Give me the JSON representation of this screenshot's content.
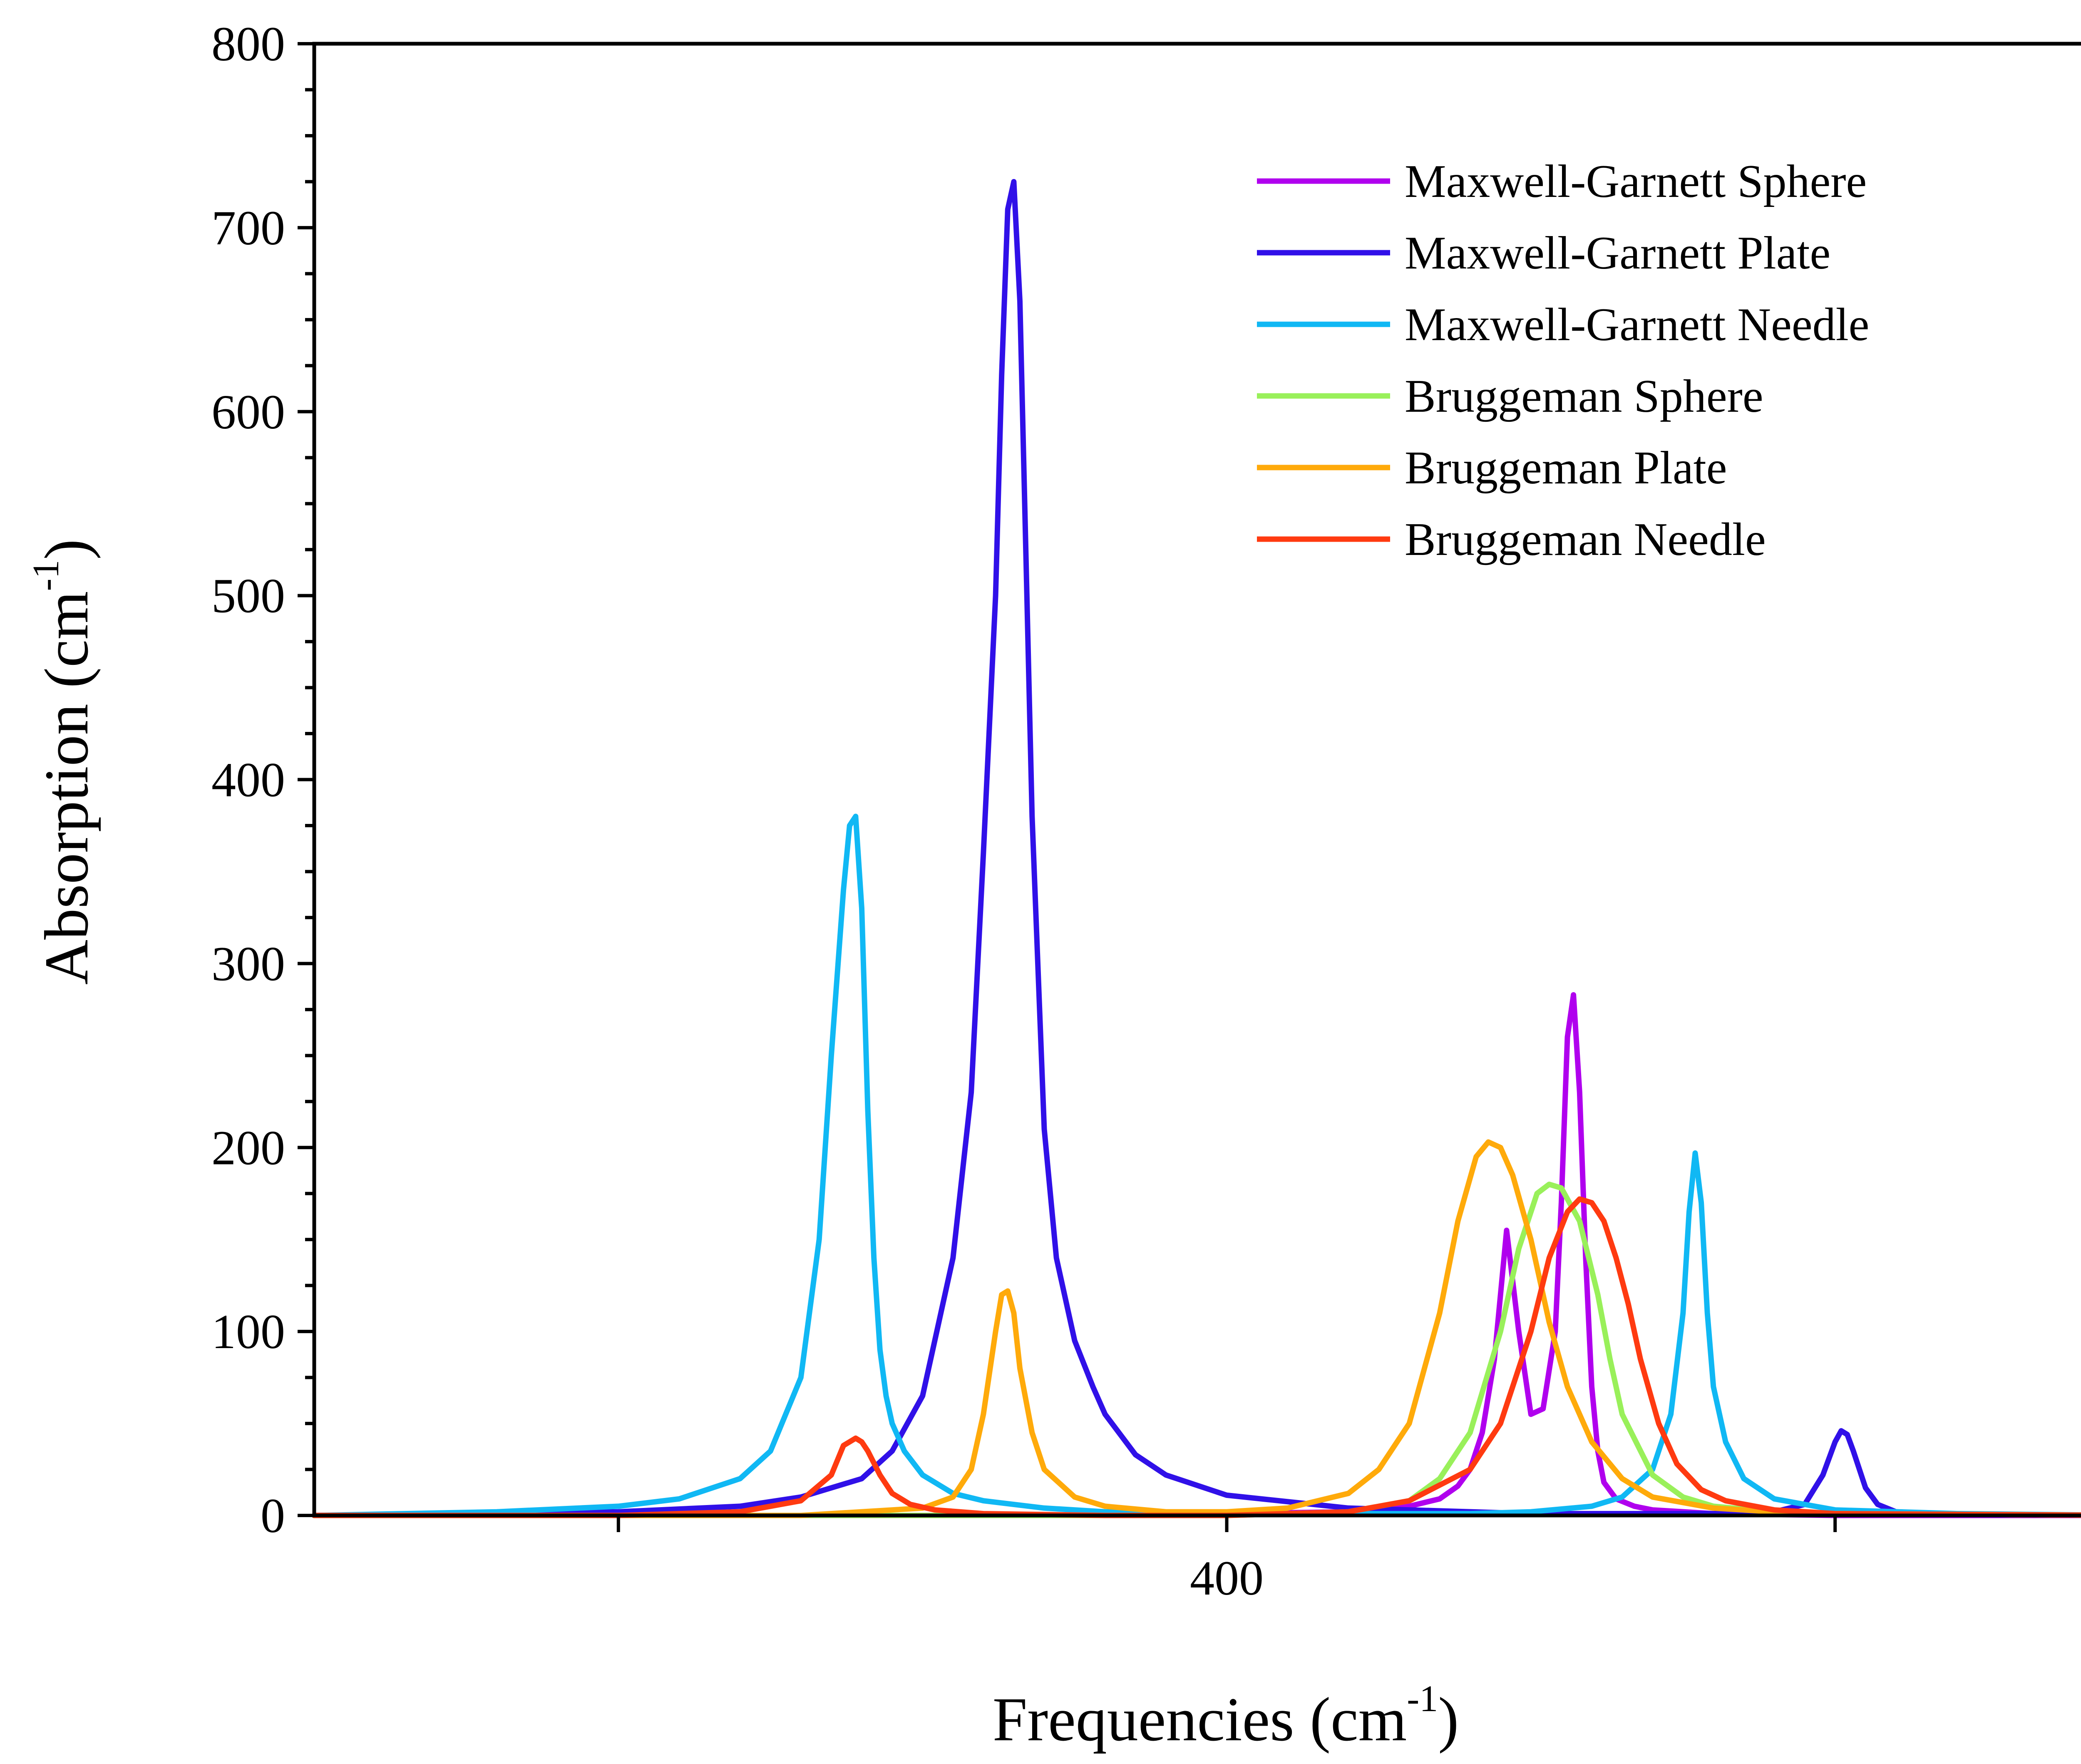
{
  "chart_data": {
    "type": "line",
    "title": "",
    "xlabel": "Frequencies (cm",
    "xlabel_sup": "-1",
    "xlabel_close": ")",
    "ylabel": "Absorption (cm",
    "ylabel_sup": "-1",
    "ylabel_close": ")",
    "xlim": [
      250,
      550
    ],
    "ylim": [
      0,
      800
    ],
    "x_major_ticks": [
      300,
      400,
      500
    ],
    "x_tick_labels": [
      "",
      "400",
      ""
    ],
    "y_major_ticks": [
      0,
      100,
      200,
      300,
      400,
      500,
      600,
      700,
      800
    ],
    "y_tick_labels": [
      "0",
      "100",
      "200",
      "300",
      "400",
      "500",
      "600",
      "700",
      "800"
    ],
    "y_minor_step": 25,
    "grid": false,
    "legend_position": "top-right",
    "series": [
      {
        "name": "Maxwell-Garnett Sphere",
        "color": "#b000ee",
        "x": [
          250,
          320,
          340,
          360,
          380,
          400,
          420,
          430,
          435,
          438,
          440,
          442,
          444,
          446,
          448,
          450,
          452,
          454,
          455,
          456,
          457,
          458,
          459,
          460,
          461,
          462,
          464,
          467,
          470,
          480,
          490,
          500,
          520,
          550
        ],
        "y": [
          0,
          0,
          0,
          0,
          0,
          1,
          2,
          5,
          9,
          16,
          25,
          45,
          85,
          155,
          100,
          55,
          58,
          100,
          170,
          260,
          283,
          230,
          140,
          70,
          35,
          18,
          9,
          5,
          3,
          1,
          0.5,
          0,
          0,
          0
        ]
      },
      {
        "name": "Maxwell-Garnett Plate",
        "color": "#3010e8",
        "x": [
          250,
          300,
          320,
          330,
          340,
          345,
          350,
          355,
          358,
          360,
          362,
          363,
          364,
          365,
          366,
          367,
          368,
          370,
          372,
          375,
          378,
          380,
          385,
          390,
          400,
          420,
          450,
          480,
          490,
          495,
          498,
          500,
          501,
          502,
          503,
          505,
          507,
          510,
          520,
          550
        ],
        "y": [
          0,
          2,
          5,
          10,
          20,
          35,
          65,
          140,
          230,
          360,
          500,
          620,
          710,
          725,
          660,
          520,
          380,
          210,
          140,
          95,
          70,
          55,
          33,
          22,
          11,
          4,
          1,
          1,
          2,
          6,
          22,
          40,
          46,
          44,
          35,
          15,
          6,
          2,
          0.5,
          0
        ]
      },
      {
        "name": "Maxwell-Garnett Needle",
        "color": "#10b8f4",
        "x": [
          250,
          280,
          300,
          310,
          320,
          325,
          330,
          333,
          335,
          337,
          338,
          339,
          340,
          341,
          342,
          343,
          344,
          345,
          347,
          350,
          355,
          360,
          370,
          380,
          400,
          420,
          440,
          450,
          460,
          465,
          470,
          473,
          475,
          476,
          477,
          478,
          479,
          480,
          482,
          485,
          490,
          500,
          520,
          550
        ],
        "y": [
          0,
          2,
          5,
          9,
          20,
          35,
          75,
          150,
          250,
          340,
          375,
          380,
          330,
          220,
          140,
          90,
          65,
          50,
          35,
          22,
          12,
          8,
          4,
          2,
          1,
          1,
          1,
          2,
          5,
          10,
          25,
          55,
          110,
          165,
          197,
          170,
          110,
          70,
          40,
          20,
          9,
          3,
          1,
          0
        ]
      },
      {
        "name": "Bruggeman Sphere",
        "color": "#99f05a",
        "x": [
          250,
          400,
          420,
          430,
          435,
          440,
          445,
          448,
          451,
          453,
          455,
          458,
          461,
          463,
          465,
          470,
          475,
          480,
          490,
          500,
          550
        ],
        "y": [
          0,
          0,
          2,
          8,
          20,
          45,
          100,
          145,
          175,
          180,
          178,
          160,
          120,
          85,
          55,
          22,
          10,
          5,
          2,
          1,
          0
        ]
      },
      {
        "name": "Bruggeman Plate",
        "color": "#ffaa0a",
        "x": [
          250,
          330,
          350,
          355,
          358,
          360,
          362,
          363,
          364,
          365,
          366,
          368,
          370,
          375,
          380,
          390,
          400,
          410,
          420,
          425,
          430,
          435,
          438,
          441,
          443,
          445,
          447,
          450,
          453,
          456,
          460,
          465,
          470,
          480,
          490,
          500,
          550
        ],
        "y": [
          0,
          0,
          4,
          10,
          25,
          55,
          100,
          120,
          122,
          110,
          80,
          45,
          25,
          10,
          5,
          2,
          2,
          4,
          12,
          25,
          50,
          110,
          160,
          195,
          203,
          200,
          185,
          150,
          105,
          70,
          40,
          20,
          10,
          4,
          2,
          1,
          0
        ]
      },
      {
        "name": "Bruggeman Needle",
        "color": "#ff3a10",
        "x": [
          250,
          300,
          320,
          330,
          335,
          337,
          339,
          340,
          341,
          343,
          345,
          348,
          352,
          360,
          380,
          400,
          420,
          430,
          440,
          445,
          450,
          453,
          456,
          458,
          460,
          462,
          464,
          466,
          468,
          471,
          474,
          478,
          482,
          490,
          500,
          550
        ],
        "y": [
          0,
          0,
          2,
          8,
          22,
          38,
          42,
          40,
          35,
          22,
          12,
          6,
          3,
          1,
          0,
          0,
          2,
          8,
          25,
          50,
          100,
          140,
          165,
          172,
          170,
          160,
          140,
          115,
          85,
          50,
          28,
          14,
          8,
          3,
          1,
          0
        ]
      }
    ]
  }
}
